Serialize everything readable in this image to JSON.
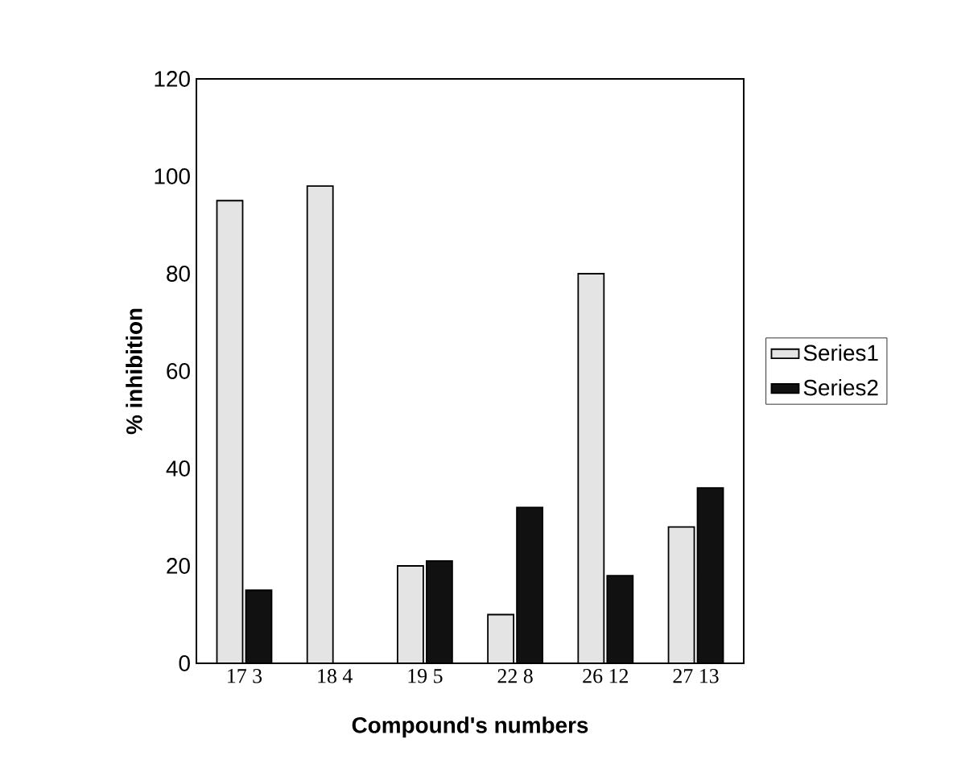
{
  "chart_data": {
    "type": "bar",
    "xlabel": "Compound's numbers",
    "ylabel": "% inhibition",
    "categories": [
      "17 3",
      "18 4",
      "19 5",
      "22 8",
      "26 12",
      "27 13"
    ],
    "series": [
      {
        "name": "Series1",
        "color": "#e4e4e4",
        "values": [
          95,
          98,
          20,
          10,
          80,
          28
        ]
      },
      {
        "name": "Series2",
        "color": "#111111",
        "values": [
          15,
          0,
          21,
          32,
          18,
          36
        ]
      }
    ],
    "ylim": [
      0,
      120
    ],
    "yticks": [
      0,
      20,
      40,
      60,
      80,
      100,
      120
    ],
    "grid": false,
    "legend": "right"
  }
}
